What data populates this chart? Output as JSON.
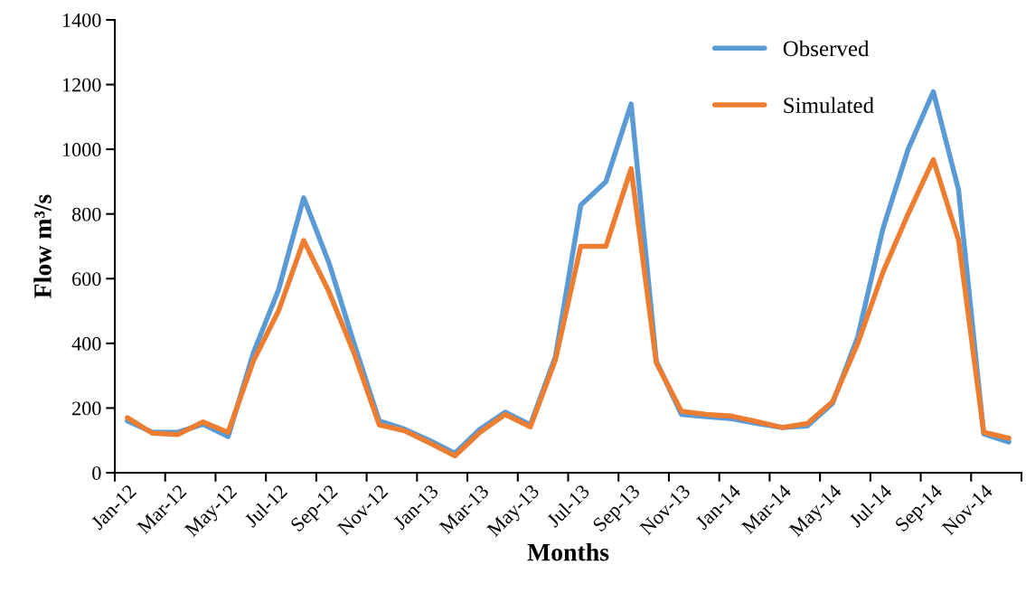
{
  "chart_data": {
    "type": "line",
    "xlabel": "Months",
    "ylabel": "Flow m³/s",
    "categories": [
      "Jan-12",
      null,
      "Mar-12",
      null,
      "May-12",
      null,
      "Jul-12",
      null,
      "Sep-12",
      null,
      "Nov-12",
      null,
      "Jan-13",
      null,
      "Mar-13",
      null,
      "May-13",
      null,
      "Jul-13",
      null,
      "Sep-13",
      null,
      "Nov-13",
      null,
      "Jan-14",
      null,
      "Mar-14",
      null,
      "May-14",
      null,
      "Jul-14",
      null,
      "Sep-14",
      null,
      "Nov-14",
      null
    ],
    "series": [
      {
        "name": "Observed",
        "color": "#5b9bd5",
        "values": [
          160,
          125,
          125,
          150,
          112,
          370,
          565,
          850,
          650,
          400,
          160,
          135,
          100,
          60,
          135,
          187,
          148,
          360,
          827,
          900,
          1140,
          345,
          180,
          173,
          167,
          152,
          140,
          145,
          215,
          420,
          755,
          1000,
          1178,
          875,
          120,
          95
        ]
      },
      {
        "name": "Simulated",
        "color": "#ed7d31",
        "values": [
          170,
          122,
          118,
          157,
          125,
          345,
          500,
          718,
          560,
          370,
          148,
          130,
          92,
          52,
          125,
          180,
          142,
          350,
          700,
          700,
          940,
          340,
          190,
          180,
          175,
          158,
          140,
          152,
          220,
          400,
          620,
          800,
          968,
          720,
          125,
          107
        ]
      }
    ],
    "ylim": [
      0,
      1400
    ],
    "yticks": [
      0,
      200,
      400,
      600,
      800,
      1000,
      1200,
      1400
    ],
    "grid": false,
    "legend": "top right",
    "marker": "none",
    "line_style": "solid"
  }
}
